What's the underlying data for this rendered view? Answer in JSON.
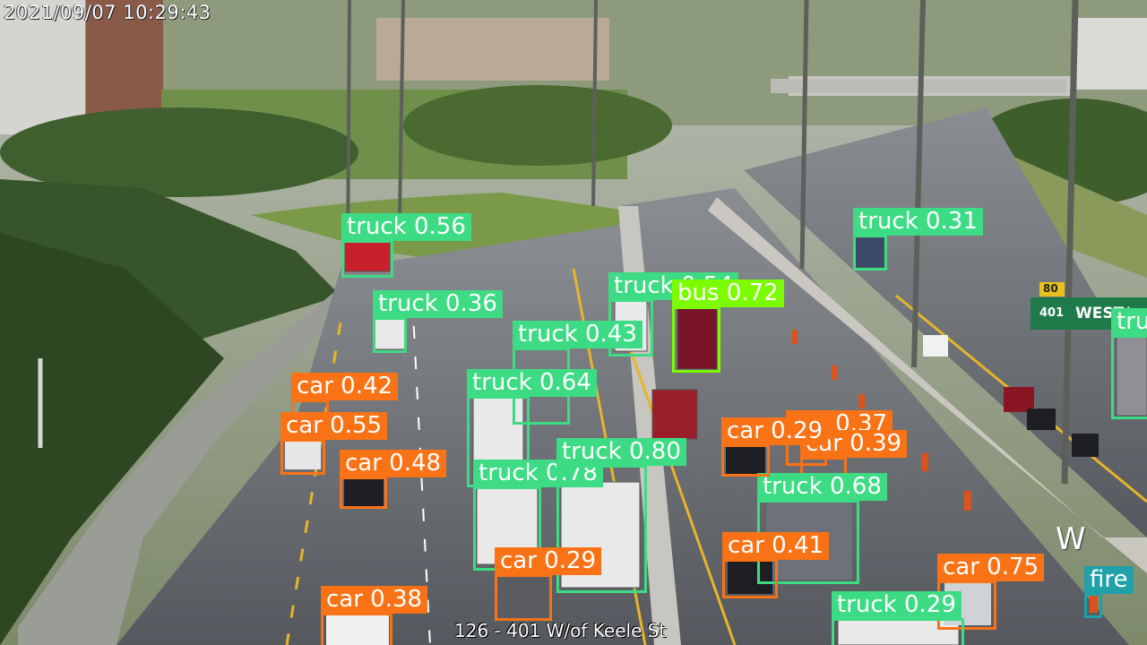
{
  "camera": {
    "timestamp": "2021/09/07   10:29:43",
    "location": "126 - 401 W/of Keele St",
    "compass": "W"
  },
  "signs": {
    "highway_number": "401",
    "direction": "WEST/",
    "speed": "80"
  },
  "colors": {
    "truck": "#3ddc84",
    "car": "#f97316",
    "bus": "#7cfc00",
    "fire": "#20a0a8"
  },
  "detections": [
    {
      "label": "truck 0.56"
    },
    {
      "label": "truck 0.31"
    },
    {
      "label": "truck 0.36"
    },
    {
      "label": "truck 0.54"
    },
    {
      "label": "bus 0.72"
    },
    {
      "label": "truck 0.43"
    },
    {
      "label": "truck 0.64"
    },
    {
      "label": "car 0.42"
    },
    {
      "label": "car 0.55"
    },
    {
      "label": "car 0.48"
    },
    {
      "label": "truck 0.78"
    },
    {
      "label": "truck 0.80"
    },
    {
      "label": "car 0.37"
    },
    {
      "label": "car 0.39"
    },
    {
      "label": "car 0.29"
    },
    {
      "label": "truck 0.68"
    },
    {
      "label": "car 0.41"
    },
    {
      "label": "car 0.75"
    },
    {
      "label": "car 0.38"
    },
    {
      "label": "car 0.29"
    },
    {
      "label": "truck 0.29"
    },
    {
      "label": "fire"
    },
    {
      "label": "truck"
    }
  ]
}
